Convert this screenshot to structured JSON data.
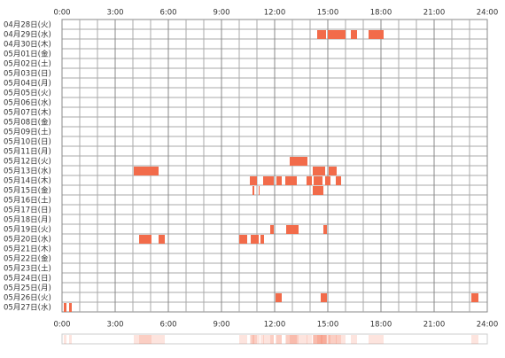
{
  "chart_data": {
    "type": "timeline",
    "categories": [
      "04月28日(火)",
      "04月29日(水)",
      "04月30日(木)",
      "05月01日(金)",
      "05月02日(土)",
      "05月03日(日)",
      "05月04日(月)",
      "05月05日(火)",
      "05月06日(水)",
      "05月07日(木)",
      "05月08日(金)",
      "05月09日(土)",
      "05月10日(日)",
      "05月11日(月)",
      "05月12日(火)",
      "05月13日(水)",
      "05月14日(木)",
      "05月15日(金)",
      "05月16日(土)",
      "05月17日(日)",
      "05月18日(月)",
      "05月19日(火)",
      "05月20日(水)",
      "05月21日(木)",
      "05月22日(金)",
      "05月23日(土)",
      "05月24日(日)",
      "05月25日(月)",
      "05月26日(火)",
      "05月27日(水)"
    ],
    "segments": [
      [],
      [
        [
          14.4,
          14.9
        ],
        [
          15.0,
          16.0
        ],
        [
          16.3,
          16.65
        ],
        [
          17.3,
          18.15
        ]
      ],
      [],
      [],
      [],
      [],
      [],
      [],
      [],
      [],
      [],
      [],
      [],
      [],
      [
        [
          12.85,
          13.85
        ]
      ],
      [
        [
          4.05,
          5.45
        ],
        [
          14.15,
          14.85
        ],
        [
          15.05,
          15.5
        ]
      ],
      [
        [
          10.6,
          11.0
        ],
        [
          11.35,
          11.95
        ],
        [
          12.1,
          12.4
        ],
        [
          12.6,
          13.25
        ],
        [
          13.8,
          14.1
        ],
        [
          14.2,
          14.7
        ],
        [
          14.85,
          15.15
        ],
        [
          15.45,
          15.75
        ]
      ],
      [
        [
          10.75,
          10.85
        ],
        [
          11.1,
          11.15
        ],
        [
          14.15,
          14.75
        ]
      ],
      [],
      [],
      [],
      [
        [
          11.75,
          11.95
        ],
        [
          12.65,
          13.35
        ],
        [
          14.75,
          14.95
        ]
      ],
      [
        [
          4.35,
          5.05
        ],
        [
          5.45,
          5.8
        ],
        [
          10.0,
          10.45
        ],
        [
          10.65,
          11.1
        ],
        [
          11.2,
          11.4
        ]
      ],
      [],
      [],
      [],
      [],
      [],
      [
        [
          12.05,
          12.4
        ],
        [
          14.6,
          14.95
        ],
        [
          23.1,
          23.5
        ]
      ],
      [
        [
          0.1,
          0.25
        ],
        [
          0.4,
          0.55
        ]
      ]
    ],
    "color": "#f26b4a",
    "xlim": [
      0,
      24
    ],
    "xticks": [
      {
        "value": 0,
        "label": "0:00"
      },
      {
        "value": 3,
        "label": "3:00"
      },
      {
        "value": 6,
        "label": "6:00"
      },
      {
        "value": 9,
        "label": "9:00"
      },
      {
        "value": 12,
        "label": "12:00"
      },
      {
        "value": 15,
        "label": "15:00"
      },
      {
        "value": 18,
        "label": "18:00"
      },
      {
        "value": 21,
        "label": "21:00"
      },
      {
        "value": 24,
        "label": "24:00"
      }
    ],
    "grid": true
  }
}
